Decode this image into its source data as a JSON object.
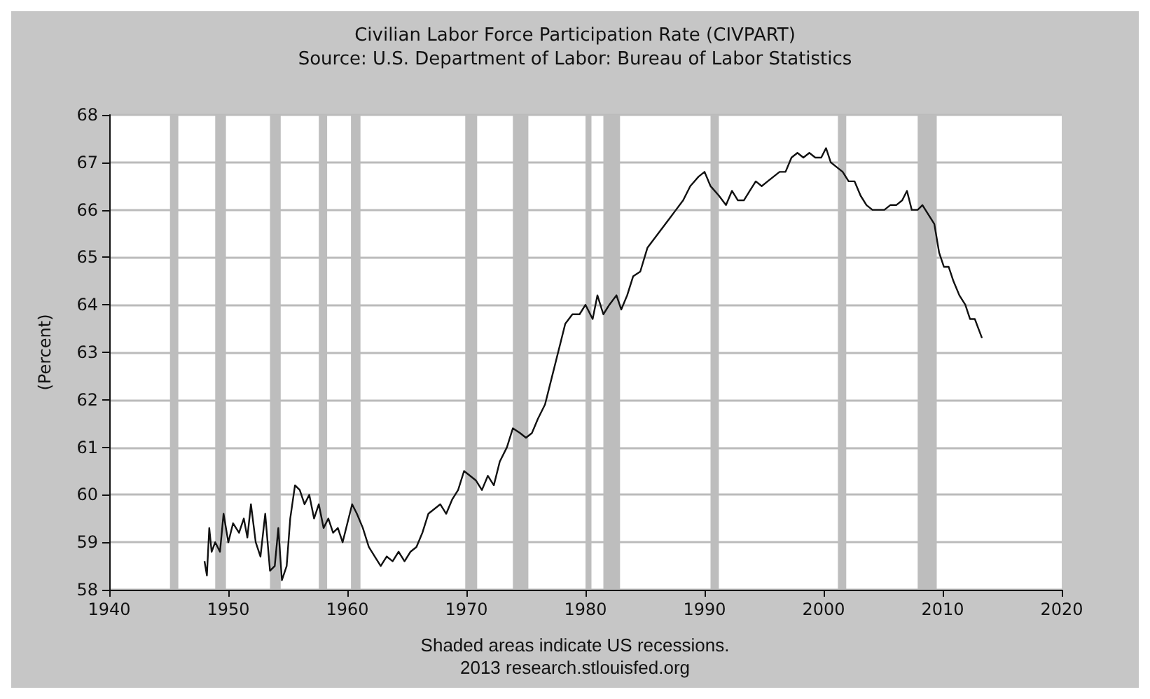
{
  "chart_data": {
    "type": "line",
    "title": "Civilian Labor Force Participation Rate (CIVPART)",
    "subtitle": "Source: U.S. Department of Labor: Bureau of Labor Statistics",
    "ylabel": "(Percent)",
    "annotations": [
      "Shaded areas indicate US recessions.",
      "2013 research.stlouisfed.org"
    ],
    "xlim": [
      1940,
      2020
    ],
    "xticks": [
      1940,
      1950,
      1960,
      1970,
      1980,
      1990,
      2000,
      2010,
      2020
    ],
    "ylim": [
      58,
      68
    ],
    "yticks": [
      58,
      59,
      60,
      61,
      62,
      63,
      64,
      65,
      66,
      67,
      68
    ],
    "grid": "y",
    "marker": "none",
    "line_style": "solid",
    "bands": [
      {
        "axis": "x",
        "from": 1945.1,
        "to": 1945.8,
        "color": "#bdbdbd"
      },
      {
        "axis": "x",
        "from": 1948.9,
        "to": 1949.8,
        "color": "#bdbdbd"
      },
      {
        "axis": "x",
        "from": 1953.5,
        "to": 1954.4,
        "color": "#bdbdbd"
      },
      {
        "axis": "x",
        "from": 1957.6,
        "to": 1958.3,
        "color": "#bdbdbd"
      },
      {
        "axis": "x",
        "from": 1960.3,
        "to": 1961.1,
        "color": "#bdbdbd"
      },
      {
        "axis": "x",
        "from": 1969.9,
        "to": 1970.9,
        "color": "#bdbdbd"
      },
      {
        "axis": "x",
        "from": 1973.9,
        "to": 1975.2,
        "color": "#bdbdbd"
      },
      {
        "axis": "x",
        "from": 1980.0,
        "to": 1980.5,
        "color": "#bdbdbd"
      },
      {
        "axis": "x",
        "from": 1981.5,
        "to": 1982.9,
        "color": "#bdbdbd"
      },
      {
        "axis": "x",
        "from": 1990.5,
        "to": 1991.2,
        "color": "#bdbdbd"
      },
      {
        "axis": "x",
        "from": 2001.2,
        "to": 2001.9,
        "color": "#bdbdbd"
      },
      {
        "axis": "x",
        "from": 2007.9,
        "to": 2009.5,
        "color": "#bdbdbd"
      }
    ],
    "series": [
      {
        "color": "#111111",
        "x": [
          1948.0,
          1948.2,
          1948.4,
          1948.6,
          1948.9,
          1949.3,
          1949.6,
          1950.0,
          1950.4,
          1950.9,
          1951.3,
          1951.6,
          1951.9,
          1952.3,
          1952.7,
          1953.1,
          1953.5,
          1953.9,
          1954.2,
          1954.5,
          1954.9,
          1955.2,
          1955.6,
          1956.0,
          1956.4,
          1956.8,
          1957.2,
          1957.6,
          1958.0,
          1958.4,
          1958.8,
          1959.2,
          1959.6,
          1960.0,
          1960.4,
          1960.8,
          1961.3,
          1961.8,
          1962.3,
          1962.8,
          1963.3,
          1963.8,
          1964.3,
          1964.8,
          1965.3,
          1965.8,
          1966.3,
          1966.8,
          1967.3,
          1967.8,
          1968.3,
          1968.8,
          1969.3,
          1969.8,
          1970.3,
          1970.8,
          1971.3,
          1971.8,
          1972.3,
          1972.8,
          1973.4,
          1973.9,
          1974.5,
          1975.0,
          1975.5,
          1976.0,
          1976.6,
          1977.2,
          1977.8,
          1978.3,
          1978.9,
          1979.5,
          1980.0,
          1980.6,
          1981.0,
          1981.5,
          1982.0,
          1982.6,
          1983.0,
          1983.5,
          1984.0,
          1984.6,
          1985.2,
          1985.8,
          1986.4,
          1987.0,
          1987.6,
          1988.2,
          1988.8,
          1989.5,
          1990.0,
          1990.5,
          1991.2,
          1991.8,
          1992.3,
          1992.8,
          1993.3,
          1993.8,
          1994.3,
          1994.8,
          1995.3,
          1995.8,
          1996.3,
          1996.8,
          1997.3,
          1997.8,
          1998.3,
          1998.8,
          1999.3,
          1999.8,
          2000.2,
          2000.6,
          2001.1,
          2001.6,
          2002.1,
          2002.6,
          2003.1,
          2003.6,
          2004.1,
          2004.6,
          2005.1,
          2005.6,
          2006.1,
          2006.6,
          2007.0,
          2007.4,
          2007.9,
          2008.3,
          2008.8,
          2009.3,
          2009.7,
          2010.1,
          2010.5,
          2010.9,
          2011.4,
          2011.9,
          2012.3,
          2012.7,
          2013.0,
          2013.3
        ],
        "values": [
          58.6,
          58.3,
          59.3,
          58.8,
          59.0,
          58.8,
          59.6,
          59.0,
          59.4,
          59.2,
          59.5,
          59.1,
          59.8,
          59.0,
          58.7,
          59.6,
          58.4,
          58.5,
          59.3,
          58.2,
          58.5,
          59.5,
          60.2,
          60.1,
          59.8,
          60.0,
          59.5,
          59.8,
          59.3,
          59.5,
          59.2,
          59.3,
          59.0,
          59.4,
          59.8,
          59.6,
          59.3,
          58.9,
          58.7,
          58.5,
          58.7,
          58.6,
          58.8,
          58.6,
          58.8,
          58.9,
          59.2,
          59.6,
          59.7,
          59.8,
          59.6,
          59.9,
          60.1,
          60.5,
          60.4,
          60.3,
          60.1,
          60.4,
          60.2,
          60.7,
          61.0,
          61.4,
          61.3,
          61.2,
          61.3,
          61.6,
          61.9,
          62.5,
          63.1,
          63.6,
          63.8,
          63.8,
          64.0,
          63.7,
          64.2,
          63.8,
          64.0,
          64.2,
          63.9,
          64.2,
          64.6,
          64.7,
          65.2,
          65.4,
          65.6,
          65.8,
          66.0,
          66.2,
          66.5,
          66.7,
          66.8,
          66.5,
          66.3,
          66.1,
          66.4,
          66.2,
          66.2,
          66.4,
          66.6,
          66.5,
          66.6,
          66.7,
          66.8,
          66.8,
          67.1,
          67.2,
          67.1,
          67.2,
          67.1,
          67.1,
          67.3,
          67.0,
          66.9,
          66.8,
          66.6,
          66.6,
          66.3,
          66.1,
          66.0,
          66.0,
          66.0,
          66.1,
          66.1,
          66.2,
          66.4,
          66.0,
          66.0,
          66.1,
          65.9,
          65.7,
          65.1,
          64.8,
          64.8,
          64.5,
          64.2,
          64.0,
          63.7,
          63.7,
          63.5,
          63.3
        ]
      }
    ]
  }
}
